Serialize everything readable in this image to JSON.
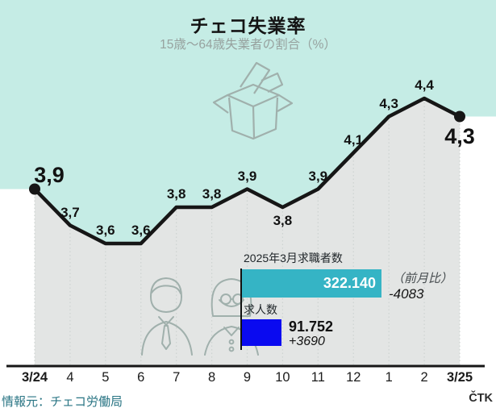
{
  "header": {
    "title": "チェコ失業率",
    "subtitle": "15歳〜64歳失業者の割合（%）"
  },
  "footer": {
    "source": "情報元：チェコ労働局",
    "agency": "ČTK"
  },
  "colors": {
    "area_above": "#c5ece5",
    "area_below": "#e3e5e4",
    "gridline": "#cdd3d1",
    "line": "#161616",
    "inset_bar1": "#35b4c5",
    "inset_bar2": "#0a0af0",
    "icon_stroke": "#a0b0ac"
  },
  "chart_data": {
    "type": "line",
    "title": "チェコ失業率",
    "subtitle": "15歳〜64歳失業者の割合（%）",
    "categories": [
      "3/24",
      "4",
      "5",
      "6",
      "7",
      "8",
      "9",
      "10",
      "11",
      "12",
      "1",
      "2",
      "3/25"
    ],
    "values": [
      3.9,
      3.7,
      3.6,
      3.6,
      3.8,
      3.8,
      3.9,
      3.8,
      3.9,
      4.1,
      4.3,
      4.4,
      4.3
    ],
    "display_labels": [
      "3,9",
      "3,7",
      "3,6",
      "3,6",
      "3,8",
      "3,8",
      "3,9",
      "3,8",
      "3,9",
      "4,1",
      "4,3",
      "4,4",
      "4,3"
    ],
    "emphasized_points": [
      0,
      12
    ],
    "label_below_points": [
      7
    ],
    "ylim": [
      3.45,
      4.6
    ],
    "grid": "vertical-dotted",
    "legend": "none"
  },
  "inset": {
    "bar1_label": "2025年3月求職者数",
    "bar1_value": 322140,
    "bar1_value_label": "322.140",
    "bar1_change_caption": "（前月比）",
    "bar1_change": "-4083",
    "bar2_label": "求人数",
    "bar2_value": 91752,
    "bar2_value_label": "91.752",
    "bar2_change": "+3690"
  }
}
